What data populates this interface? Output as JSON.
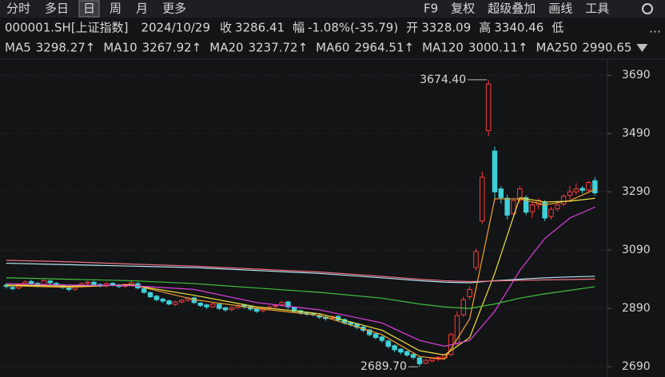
{
  "toolbar": {
    "left": [
      "分时",
      "多日",
      "日",
      "周",
      "月",
      "更多"
    ],
    "active": "日",
    "right": [
      "F9",
      "复权",
      "超级叠加",
      "画线",
      "工具"
    ]
  },
  "header": {
    "symbol": "000001.SH[上证指数]",
    "date": "2024/10/29",
    "items": [
      {
        "label": "收",
        "value": "3286.41",
        "color": "#3fcf5f"
      },
      {
        "label": "幅",
        "value": "-1.08%(-35.79)",
        "color": "#3fcf5f"
      },
      {
        "label": "开",
        "value": "3328.09",
        "color": "#ff4040"
      },
      {
        "label": "高",
        "value": "3340.46",
        "color": "#ff4040"
      },
      {
        "label": "低",
        "value": null,
        "color": "#ff4040"
      }
    ]
  },
  "chart_data": {
    "type": "candlestick",
    "grid": true,
    "ylim": [
      2660,
      3740
    ],
    "yticks": [
      2690,
      2890,
      3090,
      3290,
      3490,
      3690
    ],
    "up_color": "#ff3b3b",
    "down_color": "#3fd0d8",
    "high_label": "3674.40",
    "low_label": "2689.70",
    "high_label_color": "#ff4040",
    "low_label_color": "#3fcf5f",
    "x": [
      0,
      1,
      2,
      3,
      4,
      5,
      6,
      7,
      8,
      9,
      10,
      11,
      12,
      13,
      14,
      15,
      16,
      17,
      18,
      19,
      20,
      21,
      22,
      23,
      24,
      25,
      26,
      27,
      28,
      29,
      30,
      31,
      32,
      33,
      34,
      35,
      36,
      37,
      38,
      39,
      40,
      41,
      42,
      43,
      44,
      45,
      46,
      47,
      48,
      49,
      50,
      51,
      52,
      53,
      54,
      55,
      56,
      57,
      58,
      59,
      60,
      61,
      62,
      63,
      64,
      65,
      66,
      67,
      68,
      69,
      70,
      71,
      72,
      73,
      74,
      75,
      76,
      77,
      78,
      79,
      80,
      81,
      82,
      83,
      84,
      85,
      86,
      87,
      88,
      89,
      90,
      91,
      92,
      93,
      94
    ],
    "xlim": [
      -1,
      96
    ],
    "open": [
      2970,
      2962,
      2960,
      2972,
      2982,
      2976,
      2970,
      2984,
      2976,
      2968,
      2960,
      2956,
      2968,
      2976,
      2980,
      2972,
      2968,
      2976,
      2970,
      2966,
      2972,
      2975,
      2958,
      2944,
      2932,
      2922,
      2916,
      2904,
      2912,
      2918,
      2926,
      2908,
      2902,
      2896,
      2904,
      2892,
      2886,
      2893,
      2902,
      2896,
      2890,
      2882,
      2890,
      2896,
      2902,
      2912,
      2893,
      2882,
      2876,
      2872,
      2866,
      2860,
      2856,
      2863,
      2852,
      2842,
      2836,
      2826,
      2816,
      2802,
      2792,
      2778,
      2762,
      2750,
      2742,
      2732,
      2720,
      2702,
      2710,
      2716,
      2720,
      2732,
      2770,
      2868,
      2930,
      3030,
      3190,
      3500,
      3430,
      3300,
      3268,
      3215,
      3262,
      3270,
      3222,
      3246,
      3255,
      3205,
      3232,
      3248,
      3278,
      3290,
      3302,
      3296,
      3328.09
    ],
    "high": [
      2978,
      2968,
      2976,
      2986,
      2988,
      2980,
      2990,
      2988,
      2980,
      2972,
      2964,
      2972,
      2980,
      2985,
      2984,
      2976,
      2980,
      2980,
      2974,
      2976,
      2984,
      2980,
      2962,
      2948,
      2936,
      2926,
      2920,
      2916,
      2922,
      2930,
      2930,
      2912,
      2906,
      2910,
      2908,
      2896,
      2896,
      2905,
      2906,
      2900,
      2894,
      2894,
      2900,
      2904,
      2915,
      2916,
      2896,
      2886,
      2880,
      2876,
      2870,
      2864,
      2866,
      2866,
      2856,
      2846,
      2840,
      2830,
      2820,
      2806,
      2796,
      2782,
      2766,
      2754,
      2746,
      2736,
      2724,
      2716,
      2722,
      2726,
      2734,
      2806,
      2880,
      2930,
      2965,
      3095,
      3360,
      3674.4,
      3445,
      3310,
      3280,
      3268,
      3310,
      3278,
      3255,
      3268,
      3262,
      3238,
      3252,
      3282,
      3310,
      3320,
      3310,
      3328,
      3340.46
    ],
    "low": [
      2958,
      2952,
      2955,
      2966,
      2970,
      2962,
      2964,
      2972,
      2964,
      2956,
      2948,
      2950,
      2962,
      2970,
      2968,
      2962,
      2962,
      2966,
      2960,
      2960,
      2966,
      2955,
      2940,
      2925,
      2914,
      2908,
      2900,
      2898,
      2906,
      2912,
      2904,
      2894,
      2888,
      2890,
      2884,
      2878,
      2880,
      2888,
      2888,
      2882,
      2874,
      2876,
      2884,
      2890,
      2896,
      2888,
      2874,
      2868,
      2864,
      2862,
      2854,
      2848,
      2850,
      2844,
      2834,
      2828,
      2818,
      2808,
      2794,
      2784,
      2772,
      2752,
      2740,
      2732,
      2724,
      2714,
      2689.7,
      2698,
      2704,
      2710,
      2714,
      2726,
      2762,
      2860,
      2920,
      3020,
      3180,
      3480,
      3260,
      3250,
      3195,
      3205,
      3250,
      3210,
      3200,
      3230,
      3190,
      3195,
      3222,
      3240,
      3265,
      3280,
      3285,
      3290,
      3278
    ],
    "close": [
      2965,
      2958,
      2972,
      2980,
      2975,
      2968,
      2985,
      2978,
      2970,
      2962,
      2955,
      2968,
      2975,
      2980,
      2972,
      2968,
      2975,
      2970,
      2965,
      2972,
      2978,
      2960,
      2945,
      2930,
      2920,
      2915,
      2905,
      2912,
      2918,
      2925,
      2910,
      2900,
      2895,
      2905,
      2890,
      2885,
      2892,
      2900,
      2895,
      2888,
      2880,
      2890,
      2895,
      2900,
      2910,
      2895,
      2880,
      2875,
      2870,
      2868,
      2860,
      2855,
      2862,
      2850,
      2840,
      2835,
      2825,
      2815,
      2800,
      2790,
      2780,
      2760,
      2748,
      2740,
      2730,
      2722,
      2700,
      2712,
      2718,
      2722,
      2730,
      2800,
      2865,
      2920,
      2955,
      3085,
      3340,
      3660,
      3290,
      3270,
      3210,
      3260,
      3300,
      3220,
      3245,
      3260,
      3200,
      3230,
      3245,
      3275,
      3290,
      3300,
      3295,
      3322,
      3286.41
    ],
    "series": [
      {
        "name": "MA5",
        "color": "#f0a030",
        "legend_value": "3298.27↑",
        "x": [
          0,
          10,
          20,
          30,
          40,
          50,
          60,
          66,
          70,
          74,
          78,
          82,
          86,
          90,
          94
        ],
        "values": [
          2968,
          2962,
          2972,
          2920,
          2890,
          2866,
          2800,
          2725,
          2716,
          2854,
          3266,
          3266,
          3245,
          3260,
          3298.27
        ]
      },
      {
        "name": "MA10",
        "color": "#f0e040",
        "legend_value": "3267.92↑",
        "x": [
          0,
          10,
          20,
          30,
          40,
          50,
          60,
          66,
          70,
          74,
          78,
          82,
          86,
          90,
          94
        ],
        "values": [
          2970,
          2966,
          2970,
          2935,
          2895,
          2872,
          2815,
          2745,
          2730,
          2790,
          3010,
          3270,
          3255,
          3258,
          3267.92
        ]
      },
      {
        "name": "MA20",
        "color": "#e040e0",
        "legend_value": "3237.72↑",
        "x": [
          0,
          10,
          20,
          30,
          40,
          50,
          60,
          66,
          70,
          74,
          78,
          82,
          86,
          90,
          94
        ],
        "values": [
          2975,
          2970,
          2968,
          2955,
          2910,
          2885,
          2840,
          2780,
          2760,
          2780,
          2880,
          3020,
          3130,
          3200,
          3237.72
        ]
      },
      {
        "name": "MA60",
        "color": "#40c040",
        "legend_value": "2964.51↑",
        "x": [
          0,
          10,
          20,
          30,
          40,
          50,
          60,
          66,
          70,
          74,
          78,
          82,
          86,
          90,
          94
        ],
        "values": [
          2995,
          2990,
          2985,
          2975,
          2960,
          2945,
          2925,
          2905,
          2895,
          2890,
          2905,
          2925,
          2940,
          2952,
          2964.51
        ]
      },
      {
        "name": "MA120",
        "color": "#b8e8f8",
        "legend_value": "3000.11↑",
        "x": [
          0,
          10,
          20,
          30,
          40,
          50,
          60,
          66,
          70,
          74,
          78,
          82,
          86,
          90,
          94
        ],
        "values": [
          3045,
          3040,
          3035,
          3030,
          3020,
          3010,
          2995,
          2985,
          2980,
          2978,
          2985,
          2990,
          2995,
          2998,
          3000.11
        ]
      },
      {
        "name": "MA250",
        "color": "#f07080",
        "legend_value": "2990.65",
        "x": [
          0,
          10,
          20,
          30,
          40,
          50,
          60,
          66,
          70,
          74,
          78,
          82,
          86,
          90,
          94
        ],
        "values": [
          3055,
          3050,
          3042,
          3035,
          3025,
          3015,
          3000,
          2990,
          2985,
          2982,
          2984,
          2986,
          2988,
          2989,
          2990.65
        ]
      }
    ]
  }
}
